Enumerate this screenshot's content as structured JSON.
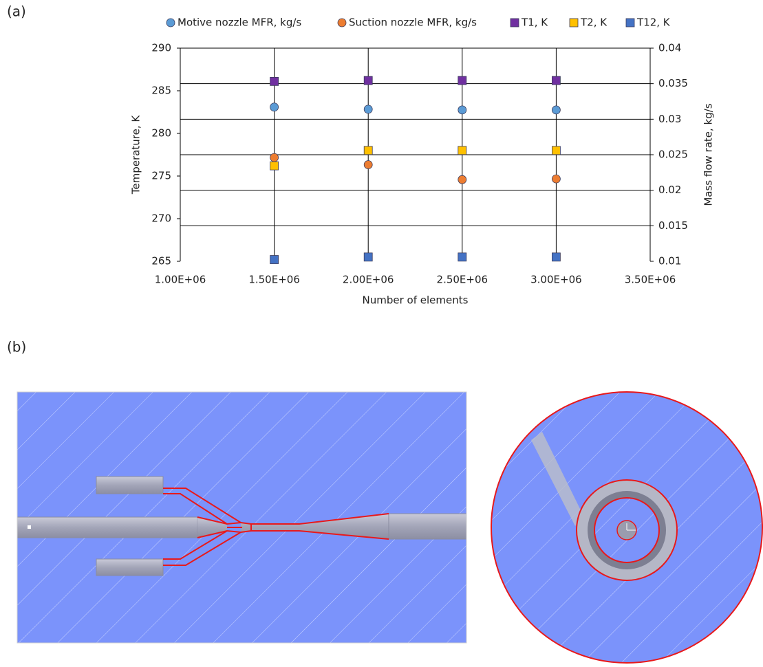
{
  "panels": [
    "(a)",
    "(b)"
  ],
  "chart_data": {
    "type": "scatter",
    "x_label": "Number of elements",
    "y_label": "Temperature, K",
    "y2_label": "Mass flow rate, kg/s",
    "x": [
      1500000,
      2000000,
      2500000,
      3000000
    ],
    "xlim": [
      1000000,
      3500000
    ],
    "xticks": [
      {
        "value": 1000000,
        "label": "1.00E+06"
      },
      {
        "value": 1500000,
        "label": "1.50E+06"
      },
      {
        "value": 2000000,
        "label": "2.00E+06"
      },
      {
        "value": 2500000,
        "label": "2.50E+06"
      },
      {
        "value": 3000000,
        "label": "3.00E+06"
      },
      {
        "value": 3500000,
        "label": "3.50E+06"
      }
    ],
    "ylim": [
      265,
      290
    ],
    "yticks": [
      265,
      270,
      275,
      280,
      285,
      290
    ],
    "y2lim": [
      0.01,
      0.04
    ],
    "y2ticks": [
      0.01,
      0.015,
      0.02,
      0.025,
      0.03,
      0.035,
      0.04
    ],
    "grid": true,
    "legend": "top",
    "series": [
      {
        "name": "Motive nozzle MFR, kg/s",
        "color": "#5b9bd5",
        "marker": "circle",
        "axis": "y2",
        "values": [
          0.0317,
          0.0314,
          0.0313,
          0.0313
        ]
      },
      {
        "name": "Suction nozzle MFR, kg/s",
        "color": "#ed7d31",
        "marker": "circle",
        "axis": "y2",
        "values": [
          0.0246,
          0.0236,
          0.0215,
          0.0216
        ]
      },
      {
        "name": "T1, K",
        "color": "#7030a0",
        "marker": "square",
        "values": [
          286.1,
          286.2,
          286.2,
          286.2
        ]
      },
      {
        "name": "T2, K",
        "color": "#ffc000",
        "marker": "square",
        "values": [
          276.2,
          278.0,
          278.0,
          278.0
        ]
      },
      {
        "name": "T12, K",
        "color": "#4472c4",
        "marker": "square",
        "values": [
          265.2,
          265.5,
          265.5,
          265.5
        ]
      }
    ]
  }
}
